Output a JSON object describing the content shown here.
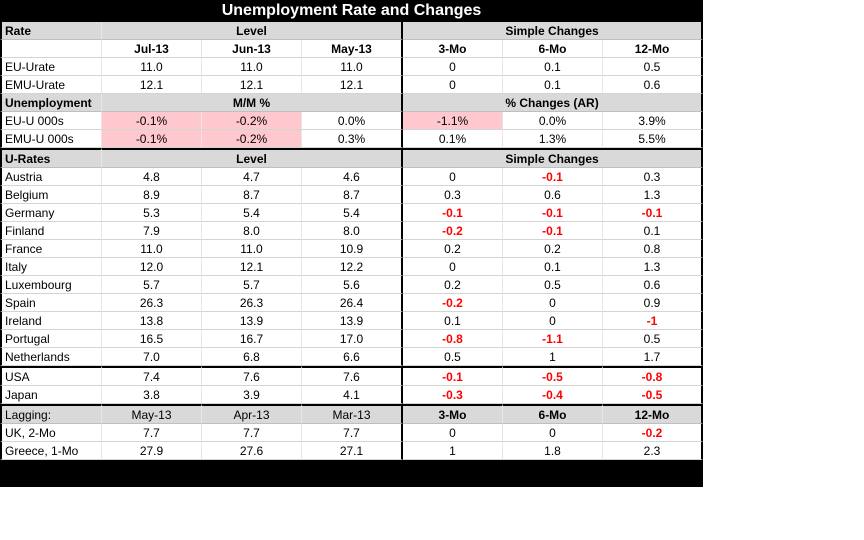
{
  "title": "Unemployment Rate and Changes",
  "rate_section": {
    "label": "Rate",
    "level_header": "Level",
    "changes_header": "Simple Changes",
    "columns": [
      "Jul-13",
      "Jun-13",
      "May-13",
      "3-Mo",
      "6-Mo",
      "12-Mo"
    ],
    "rows": [
      {
        "label": "EU-Urate",
        "values": [
          "11.0",
          "11.0",
          "11.0",
          "0",
          "0.1",
          "0.5"
        ]
      },
      {
        "label": "EMU-Urate",
        "values": [
          "12.1",
          "12.1",
          "12.1",
          "0",
          "0.1",
          "0.6"
        ]
      }
    ]
  },
  "unemp_section": {
    "label": "Unemployment",
    "mm_header": "M/M %",
    "ar_header": "% Changes (AR)",
    "rows": [
      {
        "label": "EU-U 000s",
        "values": [
          "-0.1%",
          "-0.2%",
          "0.0%",
          "-1.1%",
          "0.0%",
          "3.9%"
        ]
      },
      {
        "label": "EMU-U 000s",
        "values": [
          "-0.1%",
          "-0.2%",
          "0.3%",
          "0.1%",
          "1.3%",
          "5.5%"
        ]
      }
    ]
  },
  "urates_section": {
    "label": "U-Rates",
    "level_header": "Level",
    "changes_header": "Simple Changes",
    "rows": [
      {
        "label": "Austria",
        "values": [
          "4.8",
          "4.7",
          "4.6",
          "0",
          "-0.1",
          "0.3"
        ]
      },
      {
        "label": "Belgium",
        "values": [
          "8.9",
          "8.7",
          "8.7",
          "0.3",
          "0.6",
          "1.3"
        ]
      },
      {
        "label": "Germany",
        "values": [
          "5.3",
          "5.4",
          "5.4",
          "-0.1",
          "-0.1",
          "-0.1"
        ]
      },
      {
        "label": "Finland",
        "values": [
          "7.9",
          "8.0",
          "8.0",
          "-0.2",
          "-0.1",
          "0.1"
        ]
      },
      {
        "label": "France",
        "values": [
          "11.0",
          "11.0",
          "10.9",
          "0.2",
          "0.2",
          "0.8"
        ]
      },
      {
        "label": "Italy",
        "values": [
          "12.0",
          "12.1",
          "12.2",
          "0",
          "0.1",
          "1.3"
        ]
      },
      {
        "label": "Luxembourg",
        "values": [
          "5.7",
          "5.7",
          "5.6",
          "0.2",
          "0.5",
          "0.6"
        ]
      },
      {
        "label": "Spain",
        "values": [
          "26.3",
          "26.3",
          "26.4",
          "-0.2",
          "0",
          "0.9"
        ]
      },
      {
        "label": "Ireland",
        "values": [
          "13.8",
          "13.9",
          "13.9",
          "0.1",
          "0",
          "-1"
        ]
      },
      {
        "label": "Portugal",
        "values": [
          "16.5",
          "16.7",
          "17.0",
          "-0.8",
          "-1.1",
          "0.5"
        ]
      },
      {
        "label": "Netherlands",
        "values": [
          "7.0",
          "6.8",
          "6.6",
          "0.5",
          "1",
          "1.7"
        ]
      }
    ],
    "other_rows": [
      {
        "label": "USA",
        "values": [
          "7.4",
          "7.6",
          "7.6",
          "-0.1",
          "-0.5",
          "-0.8"
        ]
      },
      {
        "label": "Japan",
        "values": [
          "3.8",
          "3.9",
          "4.1",
          "-0.3",
          "-0.4",
          "-0.5"
        ]
      }
    ]
  },
  "lagging_section": {
    "label": "Lagging:",
    "columns": [
      "May-13",
      "Apr-13",
      "Mar-13",
      "3-Mo",
      "6-Mo",
      "12-Mo"
    ],
    "rows": [
      {
        "label": "UK, 2-Mo",
        "values": [
          "7.7",
          "7.7",
          "7.7",
          "0",
          "0",
          "-0.2"
        ]
      },
      {
        "label": "Greece, 1-Mo",
        "values": [
          "27.9",
          "27.6",
          "27.1",
          "1",
          "1.8",
          "2.3"
        ]
      }
    ]
  },
  "colors": {
    "negative": "#ff0000",
    "highlight": "#ffc7ce",
    "header_bg": "#d9d9d9",
    "title_bg": "#000000"
  }
}
